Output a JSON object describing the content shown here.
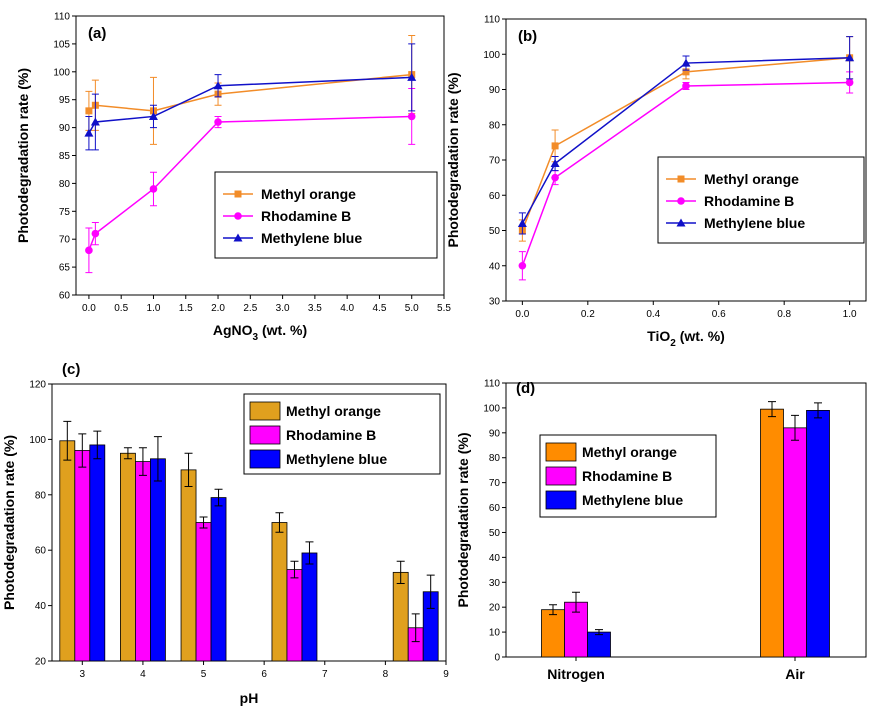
{
  "colors": {
    "methyl_orange": "#FF8C00",
    "methyl_orange_line": "#F28C28",
    "rhodamine_b": "#FF00FF",
    "methylene_blue": "#0000FF",
    "methylene_blue_line": "#1010C8",
    "bar_orange_c": "#E0A01E"
  },
  "chart_data": [
    {
      "panel": "(a)",
      "type": "line",
      "title": "",
      "xlabel_main": "AgNO",
      "xlabel_sub": "3",
      "xlabel_rest": " (wt. %)",
      "ylabel": "Photodegradation rate (%)",
      "xlim": [
        -0.2,
        5.5
      ],
      "ylim": [
        60,
        110
      ],
      "xticks": [
        0.0,
        0.5,
        1.0,
        1.5,
        2.0,
        2.5,
        3.0,
        3.5,
        4.0,
        4.5,
        5.0,
        5.5
      ],
      "xtick_labels": [
        "0.0",
        "0.5",
        "1.0",
        "1.5",
        "2.0",
        "2.5",
        "3.0",
        "3.5",
        "4.0",
        "4.5",
        "5.0",
        "5.5"
      ],
      "yticks": [
        60,
        65,
        70,
        75,
        80,
        85,
        90,
        95,
        100,
        105,
        110
      ],
      "ytick_labels": [
        "60",
        "65",
        "70",
        "75",
        "80",
        "85",
        "90",
        "95",
        "100",
        "105",
        "110"
      ],
      "legend_position": "center-right",
      "series": [
        {
          "name": "Methyl orange",
          "marker": "square",
          "color_key": "methyl_orange_line",
          "x": [
            0,
            0.1,
            1,
            2,
            5
          ],
          "y": [
            93,
            94,
            93,
            96,
            99.5
          ],
          "err": [
            3.5,
            4.5,
            6,
            2,
            7
          ]
        },
        {
          "name": "Rhodamine B",
          "marker": "circle",
          "color_key": "rhodamine_b",
          "x": [
            0,
            0.1,
            1,
            2,
            5
          ],
          "y": [
            68,
            71,
            79,
            91,
            92
          ],
          "err": [
            4,
            2,
            3,
            1,
            5
          ]
        },
        {
          "name": "Methylene blue",
          "marker": "triangle",
          "color_key": "methylene_blue_line",
          "x": [
            0,
            0.1,
            1,
            2,
            5
          ],
          "y": [
            89,
            91,
            92,
            97.5,
            99
          ],
          "err": [
            3,
            5,
            2,
            2,
            6
          ]
        }
      ]
    },
    {
      "panel": "(b)",
      "type": "line",
      "title": "",
      "xlabel_main": "TiO",
      "xlabel_sub": "2",
      "xlabel_rest": " (wt. %)",
      "ylabel": "Photodegradation rate (%)",
      "xlim": [
        -0.05,
        1.05
      ],
      "ylim": [
        30,
        110
      ],
      "xticks": [
        0.0,
        0.2,
        0.4,
        0.6,
        0.8,
        1.0
      ],
      "xtick_labels": [
        "0.0",
        "0.2",
        "0.4",
        "0.6",
        "0.8",
        "1.0"
      ],
      "yticks": [
        30,
        40,
        50,
        60,
        70,
        80,
        90,
        100,
        110
      ],
      "ytick_labels": [
        "30",
        "40",
        "50",
        "60",
        "70",
        "80",
        "90",
        "100",
        "110"
      ],
      "legend_position": "center-right",
      "series": [
        {
          "name": "Methyl orange",
          "marker": "square",
          "color_key": "methyl_orange_line",
          "x": [
            0,
            0.1,
            0.5,
            1.0
          ],
          "y": [
            50,
            74,
            95,
            99
          ],
          "err": [
            3,
            4.5,
            2,
            6
          ]
        },
        {
          "name": "Rhodamine B",
          "marker": "circle",
          "color_key": "rhodamine_b",
          "x": [
            0,
            0.1,
            0.5,
            1.0
          ],
          "y": [
            40,
            65,
            91,
            92
          ],
          "err": [
            4,
            2,
            1,
            3
          ]
        },
        {
          "name": "Methylene blue",
          "marker": "triangle",
          "color_key": "methylene_blue_line",
          "x": [
            0,
            0.1,
            0.5,
            1.0
          ],
          "y": [
            52,
            69,
            97.5,
            99
          ],
          "err": [
            3,
            2,
            2,
            6
          ]
        }
      ]
    },
    {
      "panel": "(c)",
      "type": "bar",
      "title": "",
      "xlabel": "pH",
      "ylabel": "Photodegradation rate (%)",
      "xlim": [
        2.5,
        9.0
      ],
      "ylim": [
        20,
        120
      ],
      "xticks": [
        3,
        4,
        5,
        6,
        7,
        8,
        9
      ],
      "xtick_labels": [
        "3",
        "4",
        "5",
        "6",
        "7",
        "8",
        "9"
      ],
      "yticks": [
        20,
        40,
        60,
        80,
        100,
        120
      ],
      "ytick_labels": [
        "20",
        "40",
        "60",
        "80",
        "100",
        "120"
      ],
      "legend_position": "top-right",
      "groups": [
        3,
        4,
        5,
        6.5,
        8.5
      ],
      "series": [
        {
          "name": "Methyl orange",
          "color_key": "bar_orange_c",
          "values": [
            99.5,
            95,
            89,
            70,
            52
          ],
          "err": [
            7,
            2,
            6,
            3.5,
            4
          ]
        },
        {
          "name": "Rhodamine B",
          "color_key": "rhodamine_b",
          "values": [
            96,
            92,
            70,
            53,
            32
          ],
          "err": [
            6,
            5,
            2,
            3,
            5
          ]
        },
        {
          "name": "Methylene blue",
          "color_key": "methylene_blue",
          "values": [
            98,
            93,
            79,
            59,
            45
          ],
          "err": [
            5,
            8,
            3,
            4,
            6
          ]
        }
      ]
    },
    {
      "panel": "(d)",
      "type": "bar",
      "title": "",
      "xlabel": "",
      "ylabel": "Photodegradation rate (%)",
      "ylim": [
        0,
        110
      ],
      "categories": [
        "Nitrogen",
        "Air"
      ],
      "yticks": [
        0,
        10,
        20,
        30,
        40,
        50,
        60,
        70,
        80,
        90,
        100,
        110
      ],
      "ytick_labels": [
        "0",
        "10",
        "20",
        "30",
        "40",
        "50",
        "60",
        "70",
        "80",
        "90",
        "100",
        "110"
      ],
      "legend_position": "center-left",
      "series": [
        {
          "name": "Methyl orange",
          "color_key": "methyl_orange",
          "values": [
            19,
            99.5
          ],
          "err": [
            2,
            3
          ]
        },
        {
          "name": "Rhodamine B",
          "color_key": "rhodamine_b",
          "values": [
            22,
            92
          ],
          "err": [
            4,
            5
          ]
        },
        {
          "name": "Methylene blue",
          "color_key": "methylene_blue",
          "values": [
            10,
            99
          ],
          "err": [
            1,
            3
          ]
        }
      ]
    }
  ]
}
